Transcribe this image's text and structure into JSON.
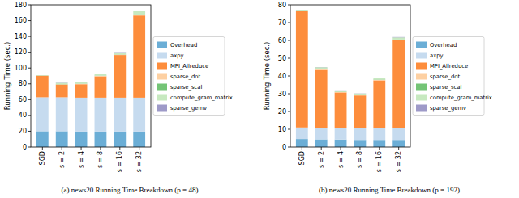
{
  "chart_data": [
    {
      "type": "bar",
      "stacked": true,
      "title": "(a) news20 Running Time Breakdown (p = 48)",
      "y_label": "Running Time (sec.)",
      "legend": "right",
      "grid": false,
      "categories": [
        "SGD",
        "s = 2",
        "s = 4",
        "s = 8",
        "s = 16",
        "s = 32"
      ],
      "ylim": [
        0,
        180
      ],
      "yticks": [
        0,
        20,
        40,
        60,
        80,
        100,
        120,
        140,
        160,
        180
      ],
      "series": [
        {
          "name": "Overhead",
          "color": "#6baed6",
          "values": [
            20,
            20,
            19.5,
            19.5,
            19.5,
            19.5
          ]
        },
        {
          "name": "axpy",
          "color": "#c6dbef",
          "values": [
            43,
            43,
            43,
            43,
            43,
            43
          ]
        },
        {
          "name": "MPI_Allreduce",
          "color": "#fd8d3c",
          "values": [
            27,
            16,
            17,
            27,
            54,
            104
          ]
        },
        {
          "name": "sparse_dot",
          "color": "#fdd0a2",
          "values": [
            0.5,
            0.5,
            0.5,
            0.5,
            0.5,
            0.5
          ]
        },
        {
          "name": "sparse_scal",
          "color": "#74c476",
          "values": [
            0.3,
            0.3,
            0.3,
            0.3,
            0.3,
            0.3
          ]
        },
        {
          "name": "compute_gram_matrix",
          "color": "#c7e9c0",
          "values": [
            0,
            1.5,
            1.5,
            1.8,
            2.5,
            5
          ]
        },
        {
          "name": "sparse_gemv",
          "color": "#9e9ac8",
          "values": [
            0,
            0.3,
            0.3,
            0.3,
            0.4,
            0.5
          ]
        }
      ]
    },
    {
      "type": "bar",
      "stacked": true,
      "title": "(b) news20 Running Time Breakdown (p = 192)",
      "y_label": "Running Time (sec.)",
      "legend": "right",
      "grid": false,
      "categories": [
        "SGD",
        "s = 2",
        "s = 4",
        "s = 8",
        "s = 16",
        "s = 32"
      ],
      "ylim": [
        0,
        80
      ],
      "yticks": [
        0,
        10,
        20,
        30,
        40,
        50,
        60,
        70,
        80
      ],
      "series": [
        {
          "name": "Overhead",
          "color": "#6baed6",
          "values": [
            4.5,
            4.3,
            4.2,
            4,
            4,
            4
          ]
        },
        {
          "name": "axpy",
          "color": "#c6dbef",
          "values": [
            6.5,
            6.5,
            6.5,
            6.5,
            6.5,
            6.5
          ]
        },
        {
          "name": "MPI_Allreduce",
          "color": "#fd8d3c",
          "values": [
            65.5,
            33,
            20,
            18.5,
            27,
            49.5
          ]
        },
        {
          "name": "sparse_dot",
          "color": "#fdd0a2",
          "values": [
            0.3,
            0.3,
            0.3,
            0.3,
            0.3,
            0.3
          ]
        },
        {
          "name": "sparse_scal",
          "color": "#74c476",
          "values": [
            0.2,
            0.2,
            0.2,
            0.2,
            0.2,
            0.2
          ]
        },
        {
          "name": "compute_gram_matrix",
          "color": "#c7e9c0",
          "values": [
            0,
            0.6,
            0.6,
            0.6,
            0.8,
            1.2
          ]
        },
        {
          "name": "sparse_gemv",
          "color": "#9e9ac8",
          "values": [
            0,
            0.1,
            0.1,
            0.1,
            0.1,
            0.2
          ]
        }
      ]
    }
  ]
}
